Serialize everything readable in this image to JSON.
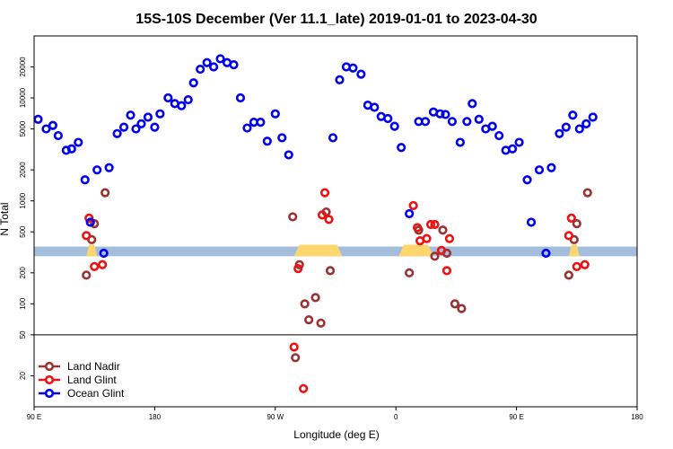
{
  "chart_data": {
    "type": "scatter",
    "title": "15S-10S December (Ver 11.1_late)   2019-01-01 to 2023-04-30",
    "xlabel": "Longitude (deg E)",
    "ylabel": "N Total",
    "yscale": "log",
    "ylim": [
      10,
      40000
    ],
    "xlim": [
      90,
      540
    ],
    "x_ticks": [
      {
        "value": 90,
        "label": "90 E"
      },
      {
        "value": 180,
        "label": "180"
      },
      {
        "value": 270,
        "label": "90 W"
      },
      {
        "value": 360,
        "label": "0"
      },
      {
        "value": 450,
        "label": "90 E"
      },
      {
        "value": 540,
        "label": "180"
      }
    ],
    "y_ticks": [
      {
        "value": 20,
        "label": "20"
      },
      {
        "value": 50,
        "label": "50"
      },
      {
        "value": 100,
        "label": "100"
      },
      {
        "value": 200,
        "label": "200"
      },
      {
        "value": 500,
        "label": "500"
      },
      {
        "value": 1000,
        "label": "1000"
      },
      {
        "value": 2000,
        "label": "2000"
      },
      {
        "value": 5000,
        "label": "5000"
      },
      {
        "value": 10000,
        "label": "10000"
      },
      {
        "value": 20000,
        "label": "20000"
      }
    ],
    "divider_y": 50,
    "land_band": {
      "y_low": 290,
      "y_high": 360,
      "color": "#a3bedc"
    },
    "land_bumps": [
      {
        "x0": 129,
        "x1": 137,
        "color": "#fdd66e"
      },
      {
        "x0": 284,
        "x1": 320,
        "color": "#fdd66e"
      },
      {
        "x0": 362,
        "x1": 388,
        "color": "#fdd66e"
      },
      {
        "x0": 489,
        "x1": 497,
        "color": "#fdd66e"
      }
    ],
    "legend_position": "bottom-left",
    "series": [
      {
        "name": "Land Nadir",
        "color": "#993333",
        "points": [
          [
            129,
            190
          ],
          [
            133,
            420
          ],
          [
            135,
            600
          ],
          [
            143,
            1200
          ],
          [
            283,
            700
          ],
          [
            285,
            30
          ],
          [
            288,
            240
          ],
          [
            292,
            100
          ],
          [
            295,
            70
          ],
          [
            300,
            115
          ],
          [
            304,
            65
          ],
          [
            308,
            780
          ],
          [
            311,
            210
          ],
          [
            370,
            200
          ],
          [
            377,
            520
          ],
          [
            389,
            290
          ],
          [
            395,
            520
          ],
          [
            398,
            310
          ],
          [
            404,
            100
          ],
          [
            409,
            90
          ],
          [
            489,
            190
          ],
          [
            493,
            420
          ],
          [
            495,
            600
          ],
          [
            503,
            1200
          ]
        ]
      },
      {
        "name": "Land Glint",
        "color": "#ee1111",
        "points": [
          [
            129,
            460
          ],
          [
            131,
            680
          ],
          [
            135,
            230
          ],
          [
            141,
            240
          ],
          [
            284,
            38
          ],
          [
            287,
            220
          ],
          [
            291,
            15
          ],
          [
            305,
            730
          ],
          [
            307,
            1200
          ],
          [
            310,
            660
          ],
          [
            373,
            900
          ],
          [
            376,
            550
          ],
          [
            378,
            410
          ],
          [
            383,
            430
          ],
          [
            386,
            590
          ],
          [
            389,
            590
          ],
          [
            394,
            330
          ],
          [
            398,
            210
          ],
          [
            400,
            430
          ],
          [
            489,
            460
          ],
          [
            491,
            680
          ],
          [
            495,
            230
          ],
          [
            501,
            240
          ]
        ]
      },
      {
        "name": "Ocean Glint",
        "color": "#0000ee",
        "points": [
          [
            93,
            6200
          ],
          [
            99,
            5000
          ],
          [
            104,
            5400
          ],
          [
            108,
            4300
          ],
          [
            114,
            3100
          ],
          [
            118,
            3200
          ],
          [
            123,
            3700
          ],
          [
            128,
            1600
          ],
          [
            132,
            620
          ],
          [
            137,
            2000
          ],
          [
            142,
            310
          ],
          [
            146,
            2100
          ],
          [
            152,
            4500
          ],
          [
            157,
            5200
          ],
          [
            162,
            6800
          ],
          [
            166,
            5000
          ],
          [
            170,
            5600
          ],
          [
            175,
            6500
          ],
          [
            180,
            5200
          ],
          [
            184,
            7000
          ],
          [
            190,
            10000
          ],
          [
            195,
            8800
          ],
          [
            200,
            8400
          ],
          [
            205,
            9600
          ],
          [
            209,
            14000
          ],
          [
            214,
            19000
          ],
          [
            219,
            22000
          ],
          [
            224,
            20000
          ],
          [
            229,
            24000
          ],
          [
            234,
            22000
          ],
          [
            239,
            21000
          ],
          [
            244,
            10000
          ],
          [
            249,
            5100
          ],
          [
            254,
            5800
          ],
          [
            259,
            5800
          ],
          [
            264,
            3800
          ],
          [
            270,
            7000
          ],
          [
            275,
            4100
          ],
          [
            280,
            2800
          ],
          [
            313,
            4100
          ],
          [
            318,
            15000
          ],
          [
            323,
            20000
          ],
          [
            328,
            19500
          ],
          [
            334,
            17000
          ],
          [
            339,
            8500
          ],
          [
            344,
            8100
          ],
          [
            349,
            6600
          ],
          [
            354,
            6300
          ],
          [
            359,
            5300
          ],
          [
            364,
            3300
          ],
          [
            370,
            750
          ],
          [
            377,
            5900
          ],
          [
            382,
            5900
          ],
          [
            388,
            7300
          ],
          [
            393,
            7000
          ],
          [
            397,
            6900
          ],
          [
            402,
            5900
          ],
          [
            408,
            3700
          ],
          [
            413,
            5900
          ],
          [
            417,
            8800
          ],
          [
            422,
            6200
          ],
          [
            427,
            5000
          ],
          [
            432,
            5300
          ],
          [
            437,
            4300
          ],
          [
            442,
            3100
          ],
          [
            447,
            3200
          ],
          [
            452,
            3700
          ],
          [
            458,
            1600
          ],
          [
            461,
            620
          ],
          [
            467,
            2000
          ],
          [
            472,
            310
          ],
          [
            476,
            2100
          ],
          [
            482,
            4500
          ],
          [
            487,
            5200
          ],
          [
            492,
            6800
          ],
          [
            497,
            5000
          ],
          [
            502,
            5600
          ],
          [
            507,
            6500
          ]
        ]
      }
    ]
  }
}
